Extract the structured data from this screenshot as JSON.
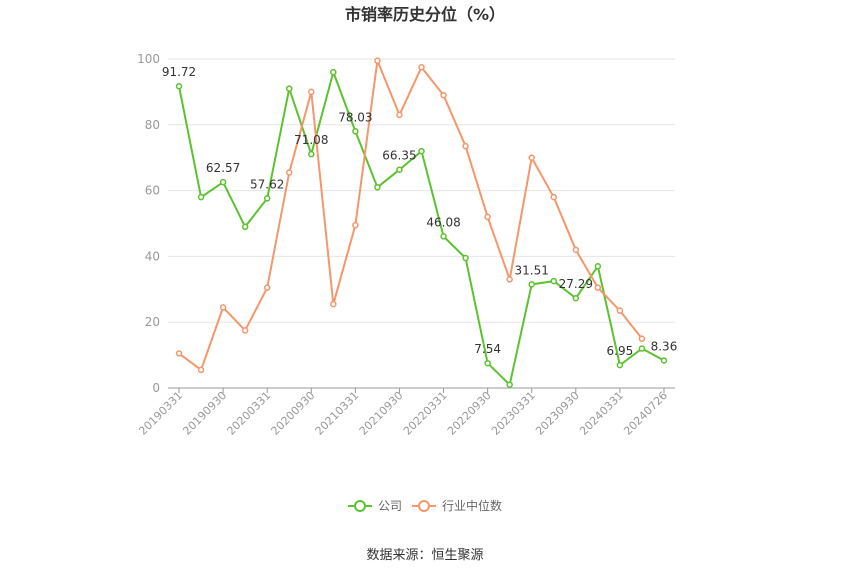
{
  "chart_data": {
    "type": "line",
    "title": "市销率历史分位（%）",
    "ylim": [
      0,
      100
    ],
    "yticks": [
      0,
      20,
      40,
      60,
      80,
      100
    ],
    "xticklabels": [
      "20190331",
      "20190930",
      "20200331",
      "20200930",
      "20210331",
      "20210930",
      "20220331",
      "20220930",
      "20230331",
      "20230930",
      "20240331",
      "20240726"
    ],
    "grid": true,
    "legend_position": "bottom",
    "series": [
      {
        "name": "公司",
        "color": "#5cc22e",
        "values": [
          91.72,
          58,
          62.57,
          49,
          57.62,
          91,
          71.08,
          96,
          78.03,
          61,
          66.35,
          72,
          46.08,
          39.5,
          7.54,
          1,
          31.51,
          32.5,
          27.29,
          37,
          6.95,
          12,
          8.36
        ],
        "labels": {
          "0": "91.72",
          "2": "62.57",
          "4": "57.62",
          "6": "71.08",
          "8": "78.03",
          "10": "66.35",
          "12": "46.08",
          "14": "7.54",
          "16": "31.51",
          "18": "27.29",
          "20": "6.95",
          "22": "8.36"
        }
      },
      {
        "name": "行业中位数",
        "color": "#f5966b",
        "values": [
          10.5,
          5.5,
          24.5,
          17.5,
          30.5,
          65.5,
          90,
          25.5,
          49.5,
          99.5,
          83,
          97.5,
          89,
          73.5,
          52,
          33,
          70,
          58,
          42,
          30.5,
          23.5,
          15
        ]
      }
    ],
    "source": "数据来源：恒生聚源"
  }
}
